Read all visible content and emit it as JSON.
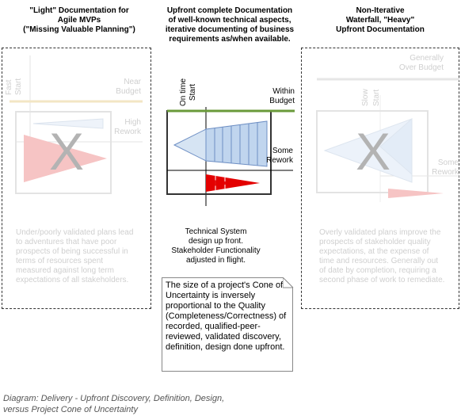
{
  "left": {
    "header": [
      "\"Light\" Documentation for",
      "Agile MVPs",
      "(\"Missing Valuable Planning\")"
    ],
    "axis_label": [
      "Fast",
      "Start"
    ],
    "near_budget": [
      "Near",
      "Budget"
    ],
    "high_rework": [
      "High",
      "Rework"
    ],
    "big_mark": "X",
    "description": "Under/poorly validated plans lead to adventures that have poor prospects of being successful in terms of resources spent measured against long term expectations of all stakeholders."
  },
  "center": {
    "header": [
      "Upfront complete Documentation",
      "of well-known technical aspects,",
      "iterative documenting of business",
      "requirements as/when available."
    ],
    "axis_label": [
      "On time",
      "Start"
    ],
    "within_budget": [
      "Within",
      "Budget"
    ],
    "some_rework": [
      "Some",
      "Rework"
    ],
    "technical_text": [
      "Technical System",
      "design up front.",
      "Stakeholder Functionality",
      "adjusted in flight."
    ],
    "note": "The size of a project's Cone of Uncertainty is inversely proportional to the Quality (Completeness/Correctness) of recorded, qualified-peer-reviewed, validated discovery, definition, design done upfront."
  },
  "right": {
    "header": [
      "Non-Iterative",
      "Waterfall, \"Heavy\"",
      "Upfront Documentation"
    ],
    "generally_over_budget": [
      "Generally",
      "Over Budget"
    ],
    "axis_label": [
      "Slow",
      "Start"
    ],
    "some_rework": [
      "Some",
      "Rework"
    ],
    "big_mark": "X",
    "description": "Overly validated plans improve the prospects of stakeholder quality expectations, at the expense of time and resources. Generally out of date by completion, requiring a second phase of work to remediate."
  },
  "caption": [
    "Diagram: Delivery - Upfront Discovery, Definition, Design,",
    "versus Project Cone of Uncertainty"
  ],
  "colors": {
    "budget_line_left": "#f3e6c4",
    "budget_line_center": "#6a9a3a",
    "cone_fill": "#c8dcf2",
    "cone_stroke": "#6e8fc4",
    "red": "#e30000",
    "faded_red": "#f6c4c4"
  }
}
